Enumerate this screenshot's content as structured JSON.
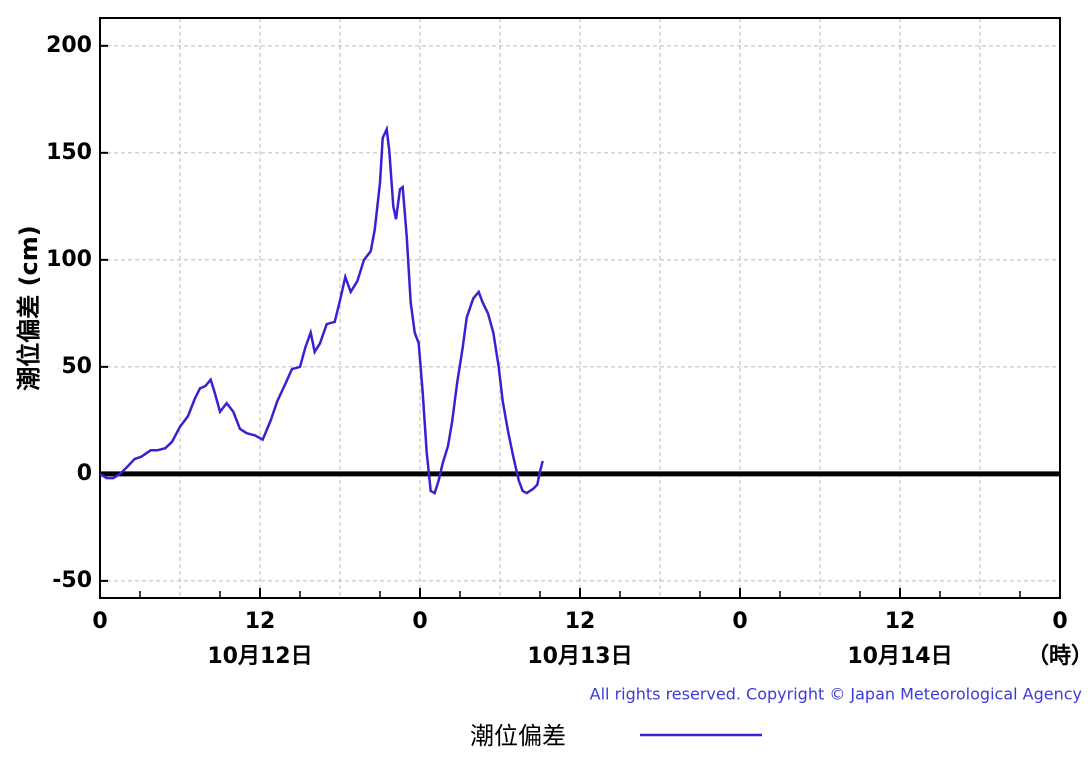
{
  "chart_data": {
    "type": "line",
    "ylabel": "潮位偏差 (cm)",
    "x_unit": "（時）",
    "copyright": "All rights reserved. Copyright © Japan Meteorological Agency",
    "xlim": [
      0,
      72
    ],
    "ylim": [
      -58,
      213
    ],
    "yticks": [
      -50,
      0,
      50,
      100,
      150,
      200
    ],
    "xticks": [
      0,
      {
        "value": 12,
        "label": "12"
      },
      {
        "value": 24,
        "label": "0"
      },
      {
        "value": 36,
        "label": "12"
      },
      {
        "value": 48,
        "label": "0"
      },
      {
        "value": 60,
        "label": "12"
      },
      {
        "value": 72,
        "label": "0"
      }
    ],
    "x_gridlines": [
      6,
      18,
      30,
      42,
      54,
      66
    ],
    "minor_xticks": [
      3,
      9,
      15,
      21,
      27,
      33,
      39,
      45,
      51,
      57,
      63,
      69
    ],
    "date_labels": [
      {
        "value": 12,
        "label": "10月12日"
      },
      {
        "value": 36,
        "label": "10月13日"
      },
      {
        "value": 60,
        "label": "10月14日"
      }
    ],
    "grid": true,
    "series": [
      {
        "name": "潮位偏差",
        "color": "#3b1fd0",
        "x": [
          0,
          0.5,
          1.0,
          1.5,
          2.0,
          2.6,
          3.1,
          3.8,
          4.3,
          4.9,
          5.4,
          6.0,
          6.6,
          7.1,
          7.5,
          7.9,
          8.3,
          8.6,
          9.0,
          9.5,
          10.0,
          10.5,
          11.0,
          11.6,
          12.2,
          12.8,
          13.3,
          13.9,
          14.4,
          15.0,
          15.4,
          15.8,
          16.1,
          16.5,
          17.0,
          17.6,
          18.0,
          18.4,
          18.8,
          19.3,
          19.8,
          20.3,
          20.6,
          21.0,
          21.2,
          21.5,
          21.7,
          22.0,
          22.2,
          22.5,
          22.7,
          23.0,
          23.3,
          23.6,
          23.9,
          24.2,
          24.5,
          24.8,
          25.1,
          25.4,
          25.7,
          26.1,
          26.4,
          26.8,
          27.2,
          27.5,
          28.0,
          28.4,
          28.7,
          29.1,
          29.5,
          29.9,
          30.2,
          30.6,
          31.0,
          31.4,
          31.7,
          32.0,
          32.5,
          32.8,
          33.0,
          33.2
        ],
        "values": [
          0,
          -2,
          -2,
          0,
          3,
          7,
          8,
          11,
          11,
          12,
          15,
          22,
          27,
          35,
          40,
          41,
          44,
          38,
          29,
          33,
          29,
          21,
          19,
          18,
          16,
          25,
          34,
          42,
          49,
          50,
          59,
          66,
          57,
          61,
          70,
          71,
          81,
          92,
          85,
          90,
          100,
          104,
          114,
          136,
          157,
          161,
          151,
          125,
          119,
          133,
          134,
          111,
          80,
          66,
          61,
          38,
          10,
          -8,
          -9,
          -3,
          5,
          13,
          24,
          43,
          59,
          73,
          82,
          85,
          80,
          75,
          66,
          50,
          34,
          20,
          8,
          -3,
          -8,
          -9,
          -7,
          -5,
          1,
          6
        ]
      }
    ]
  }
}
